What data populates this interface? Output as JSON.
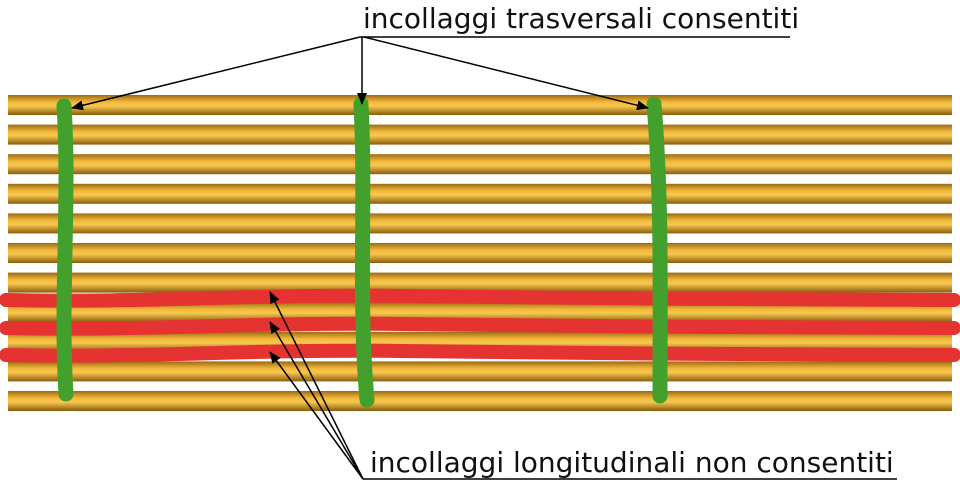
{
  "labels": {
    "top": "incollaggi trasversali consentiti",
    "bottom": "incollaggi longitudinali non consentiti"
  }
}
